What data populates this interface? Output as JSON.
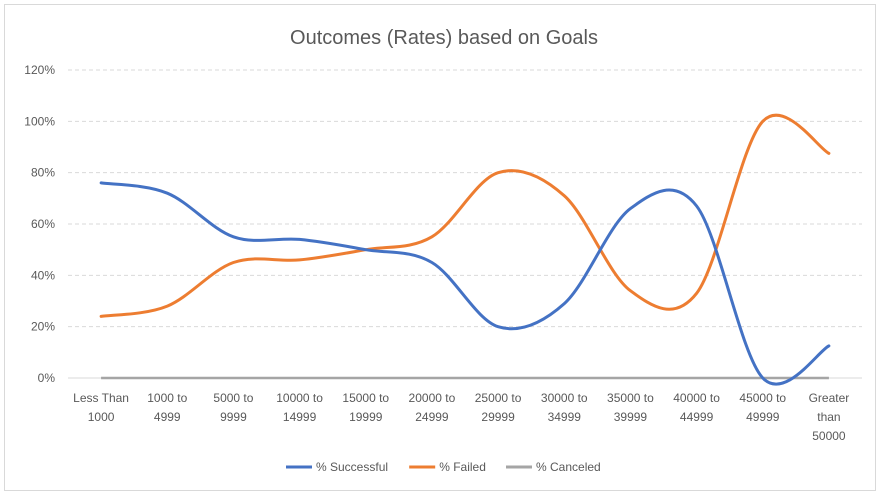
{
  "chart_data": {
    "type": "line",
    "title": "Outcomes (Rates) based on Goals",
    "xlabel": "",
    "ylabel": "",
    "categories": [
      [
        "Less Than",
        "1000"
      ],
      [
        "1000 to",
        "4999"
      ],
      [
        "5000 to",
        "9999"
      ],
      [
        "10000 to",
        "14999"
      ],
      [
        "15000 to",
        "19999"
      ],
      [
        "20000 to",
        "24999"
      ],
      [
        "25000 to",
        "29999"
      ],
      [
        "30000 to",
        "34999"
      ],
      [
        "35000 to",
        "39999"
      ],
      [
        "40000 to",
        "44999"
      ],
      [
        "45000 to",
        "49999"
      ],
      [
        "Greater",
        "than",
        "50000"
      ]
    ],
    "yticks": [
      "0%",
      "20%",
      "40%",
      "60%",
      "80%",
      "100%",
      "120%"
    ],
    "ylim": [
      0,
      120
    ],
    "grid": true,
    "legend_position": "bottom",
    "series": [
      {
        "name": "% Successful",
        "color": "#4472c4",
        "values": [
          76,
          72,
          55,
          54,
          50,
          45,
          20,
          29,
          66,
          67,
          0,
          12.5
        ]
      },
      {
        "name": "% Failed",
        "color": "#ed7d31",
        "values": [
          24,
          28,
          45,
          46,
          50,
          55,
          80,
          71,
          34,
          33,
          100,
          87.5
        ]
      },
      {
        "name": "% Canceled",
        "color": "#a5a5a5",
        "values": [
          0,
          0,
          0,
          0,
          0,
          0,
          0,
          0,
          0,
          0,
          0,
          0
        ]
      }
    ]
  }
}
